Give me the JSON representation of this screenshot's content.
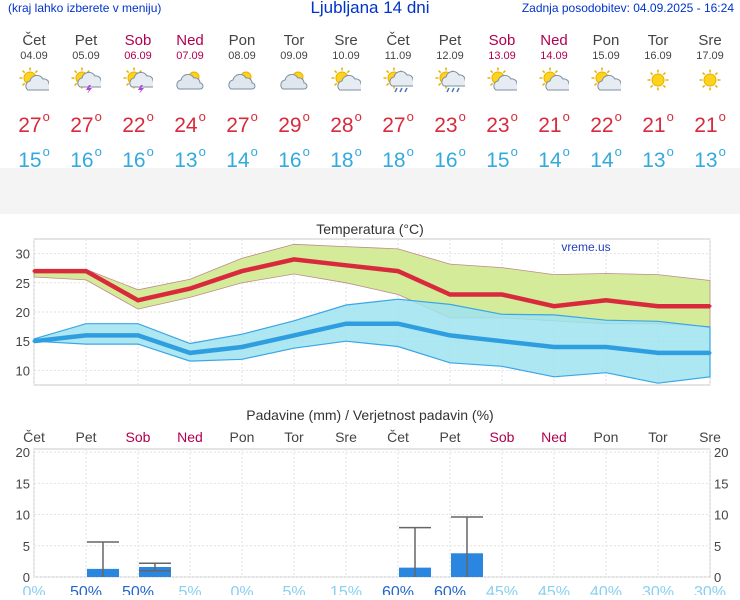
{
  "header": {
    "menu_hint": "(kraj lahko izberete v meniju)",
    "title": "Ljubljana 14 dni",
    "updated": "Zadnja posodobitev: 04.09.2025 - 16:24"
  },
  "days": [
    {
      "name": "Čet",
      "date": "04.09",
      "weekend": false,
      "icon": "sun-cloud-icon",
      "tmax": "27",
      "tmin": "15"
    },
    {
      "name": "Pet",
      "date": "05.09",
      "weekend": false,
      "icon": "sun-storm-icon",
      "tmax": "27",
      "tmin": "16"
    },
    {
      "name": "Sob",
      "date": "06.09",
      "weekend": true,
      "icon": "sun-storm-icon",
      "tmax": "22",
      "tmin": "16"
    },
    {
      "name": "Ned",
      "date": "07.09",
      "weekend": true,
      "icon": "cloud-icon",
      "tmax": "24",
      "tmin": "13"
    },
    {
      "name": "Pon",
      "date": "08.09",
      "weekend": false,
      "icon": "cloud-icon",
      "tmax": "27",
      "tmin": "14"
    },
    {
      "name": "Tor",
      "date": "09.09",
      "weekend": false,
      "icon": "cloud-icon",
      "tmax": "29",
      "tmin": "16"
    },
    {
      "name": "Sre",
      "date": "10.09",
      "weekend": false,
      "icon": "sun-cloud-icon",
      "tmax": "28",
      "tmin": "18"
    },
    {
      "name": "Čet",
      "date": "11.09",
      "weekend": false,
      "icon": "sun-rain-icon",
      "tmax": "27",
      "tmin": "18"
    },
    {
      "name": "Pet",
      "date": "12.09",
      "weekend": false,
      "icon": "sun-rain-icon",
      "tmax": "23",
      "tmin": "16"
    },
    {
      "name": "Sob",
      "date": "13.09",
      "weekend": true,
      "icon": "sun-cloud-icon",
      "tmax": "23",
      "tmin": "15"
    },
    {
      "name": "Ned",
      "date": "14.09",
      "weekend": true,
      "icon": "sun-cloud-icon",
      "tmax": "21",
      "tmin": "14"
    },
    {
      "name": "Pon",
      "date": "15.09",
      "weekend": false,
      "icon": "sun-cloud-icon",
      "tmax": "22",
      "tmin": "14"
    },
    {
      "name": "Tor",
      "date": "16.09",
      "weekend": false,
      "icon": "sun-icon",
      "tmax": "21",
      "tmin": "13"
    },
    {
      "name": "Sre",
      "date": "17.09",
      "weekend": false,
      "icon": "sun-icon",
      "tmax": "21",
      "tmin": "13"
    }
  ],
  "colors": {
    "max_line": "#d82a3c",
    "max_band": "#d4eb9a",
    "min_line": "#2f9ee0",
    "min_band": "#9fe3f0",
    "overlap": "#8fd28f",
    "weekend": "#b0004f",
    "precip_bar": "#2b86e0",
    "prob_high": "#2266cc",
    "prob_low": "#88d0ee"
  },
  "chart_data": [
    {
      "type": "line",
      "title": "Temperatura (°C)",
      "watermark": "vreme.us",
      "ylim": [
        7.5,
        32.5
      ],
      "yticks": [
        10,
        15,
        20,
        25,
        30
      ],
      "grid": true,
      "x": [
        "04.09",
        "05.09",
        "06.09",
        "07.09",
        "08.09",
        "09.09",
        "10.09",
        "11.09",
        "12.09",
        "13.09",
        "14.09",
        "15.09",
        "16.09",
        "17.09"
      ],
      "series": [
        {
          "name": "max",
          "values": [
            27,
            27,
            22,
            24,
            27,
            29,
            28,
            27,
            23,
            23,
            21,
            22,
            21,
            21
          ],
          "band_low": [
            26,
            25.5,
            20.5,
            22.5,
            25,
            26.5,
            25,
            23,
            19,
            19,
            18.5,
            18,
            18,
            17.5
          ],
          "band_high": [
            27.3,
            27.3,
            23.8,
            25.6,
            29.2,
            31.6,
            31.2,
            30.8,
            28.2,
            27.6,
            26.4,
            26.6,
            26.4,
            25.4
          ]
        },
        {
          "name": "min",
          "values": [
            15,
            16,
            16,
            13,
            14,
            16,
            18,
            18,
            16,
            15,
            14,
            14,
            13,
            13
          ],
          "band_low": [
            15,
            14.5,
            14.5,
            11.6,
            11.9,
            13.8,
            15,
            14.1,
            11.3,
            10.7,
            8.9,
            9.6,
            7.8,
            8.9
          ],
          "band_high": [
            15.4,
            18,
            18,
            14.6,
            16.2,
            18.5,
            21.2,
            22.2,
            21.3,
            19.6,
            19.5,
            18.6,
            18.4,
            17.4
          ]
        }
      ]
    },
    {
      "type": "bar",
      "title": "Padavine (mm) / Verjetnost padavin (%)",
      "ylim": [
        0,
        20.5
      ],
      "yticks": [
        0,
        5,
        10,
        15,
        20
      ],
      "categories": [
        "Čet",
        "Pet",
        "Sob",
        "Ned",
        "Pon",
        "Tor",
        "Sre",
        "Čet",
        "Pet",
        "Sob",
        "Ned",
        "Pon",
        "Tor",
        "Sre"
      ],
      "weekend": [
        false,
        false,
        true,
        true,
        false,
        false,
        false,
        false,
        false,
        true,
        true,
        false,
        false,
        false
      ],
      "values": [
        0,
        1.3,
        1.6,
        0,
        0,
        0,
        0,
        1.5,
        3.8,
        0,
        0,
        0,
        0,
        0
      ],
      "error_high": [
        0,
        5.6,
        2.2,
        0,
        0,
        0,
        0,
        7.9,
        9.6,
        0,
        0,
        0,
        0,
        0
      ],
      "error_low": [
        0,
        0,
        1.0,
        0,
        0,
        0,
        0,
        0,
        0,
        0,
        0,
        0,
        0,
        0
      ],
      "probability": [
        "0%",
        "50%",
        "50%",
        "5%",
        "0%",
        "5%",
        "15%",
        "60%",
        "60%",
        "45%",
        "45%",
        "40%",
        "30%",
        "30%"
      ],
      "probability_high": [
        false,
        true,
        true,
        false,
        false,
        false,
        false,
        true,
        true,
        false,
        false,
        false,
        false,
        false
      ]
    }
  ]
}
